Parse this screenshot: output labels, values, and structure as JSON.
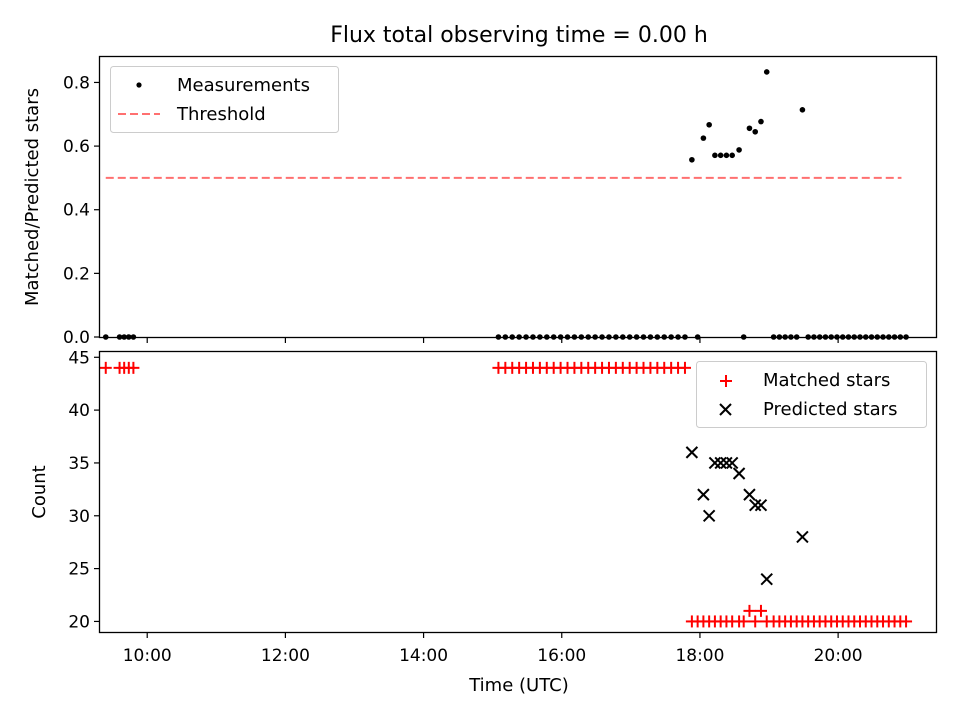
{
  "chart_data": [
    {
      "type": "scatter",
      "title": "Flux total observing time = 0.00 h",
      "xlabel": "",
      "ylabel": "Matched/Predicted stars",
      "xlim": [
        "09:19",
        "21:25"
      ],
      "ylim": [
        0.0,
        0.88
      ],
      "yticks": [
        0.0,
        0.2,
        0.4,
        0.6,
        0.8
      ],
      "ytick_labels": [
        "0.0",
        "0.2",
        "0.4",
        "0.6",
        "0.8"
      ],
      "legend_position": "top-left",
      "legend": [
        "Measurements",
        "Threshold"
      ],
      "threshold": {
        "name": "Threshold",
        "value": 0.5,
        "x_range": [
          "09:24",
          "20:55"
        ],
        "color": "#ff7070"
      },
      "series": [
        {
          "name": "Measurements",
          "marker": "dot",
          "color": "#000000",
          "points": [
            [
              "09:24",
              0.0
            ],
            [
              "09:36",
              0.0
            ],
            [
              "09:40",
              0.0
            ],
            [
              "09:44",
              0.0
            ],
            [
              "09:48",
              0.0
            ],
            [
              "15:05",
              0.0
            ],
            [
              "15:11",
              0.0
            ],
            [
              "15:17",
              0.0
            ],
            [
              "15:23",
              0.0
            ],
            [
              "15:29",
              0.0
            ],
            [
              "15:35",
              0.0
            ],
            [
              "15:41",
              0.0
            ],
            [
              "15:47",
              0.0
            ],
            [
              "15:53",
              0.0
            ],
            [
              "15:59",
              0.0
            ],
            [
              "16:05",
              0.0
            ],
            [
              "16:11",
              0.0
            ],
            [
              "16:17",
              0.0
            ],
            [
              "16:23",
              0.0
            ],
            [
              "16:29",
              0.0
            ],
            [
              "16:35",
              0.0
            ],
            [
              "16:41",
              0.0
            ],
            [
              "16:47",
              0.0
            ],
            [
              "16:53",
              0.0
            ],
            [
              "16:59",
              0.0
            ],
            [
              "17:05",
              0.0
            ],
            [
              "17:11",
              0.0
            ],
            [
              "17:17",
              0.0
            ],
            [
              "17:23",
              0.0
            ],
            [
              "17:29",
              0.0
            ],
            [
              "17:35",
              0.0
            ],
            [
              "17:41",
              0.0
            ],
            [
              "17:47",
              0.0
            ],
            [
              "17:53",
              0.557
            ],
            [
              "17:58",
              0.0
            ],
            [
              "18:03",
              0.625
            ],
            [
              "18:08",
              0.667
            ],
            [
              "18:13",
              0.571
            ],
            [
              "18:18",
              0.571
            ],
            [
              "18:23",
              0.571
            ],
            [
              "18:28",
              0.571
            ],
            [
              "18:34",
              0.588
            ],
            [
              "18:38",
              0.0
            ],
            [
              "18:43",
              0.656
            ],
            [
              "18:48",
              0.645
            ],
            [
              "18:53",
              0.677
            ],
            [
              "18:58",
              0.833
            ],
            [
              "19:04",
              0.0
            ],
            [
              "19:09",
              0.0
            ],
            [
              "19:14",
              0.0
            ],
            [
              "19:19",
              0.0
            ],
            [
              "19:24",
              0.0
            ],
            [
              "19:29",
              0.714
            ],
            [
              "19:34",
              0.0
            ],
            [
              "19:39",
              0.0
            ],
            [
              "19:44",
              0.0
            ],
            [
              "19:49",
              0.0
            ],
            [
              "19:54",
              0.0
            ],
            [
              "19:59",
              0.0
            ],
            [
              "20:04",
              0.0
            ],
            [
              "20:09",
              0.0
            ],
            [
              "20:14",
              0.0
            ],
            [
              "20:19",
              0.0
            ],
            [
              "20:24",
              0.0
            ],
            [
              "20:29",
              0.0
            ],
            [
              "20:34",
              0.0
            ],
            [
              "20:39",
              0.0
            ],
            [
              "20:44",
              0.0
            ],
            [
              "20:49",
              0.0
            ],
            [
              "20:54",
              0.0
            ],
            [
              "20:59",
              0.0
            ]
          ]
        }
      ]
    },
    {
      "type": "scatter",
      "title": "",
      "xlabel": "Time (UTC)",
      "ylabel": "Count",
      "xlim": [
        "09:19",
        "21:25"
      ],
      "ylim": [
        19.0,
        45.5
      ],
      "yticks": [
        20,
        25,
        30,
        35,
        40,
        45
      ],
      "ytick_labels": [
        "20",
        "25",
        "30",
        "35",
        "40",
        "45"
      ],
      "xticks": [
        "10:00",
        "12:00",
        "14:00",
        "16:00",
        "18:00",
        "20:00"
      ],
      "xtick_labels": [
        "10:00",
        "12:00",
        "14:00",
        "16:00",
        "18:00",
        "20:00"
      ],
      "legend_position": "top-right",
      "legend": [
        "Matched stars",
        "Predicted stars"
      ],
      "series": [
        {
          "name": "Matched stars",
          "marker": "plus",
          "color": "#ff0000",
          "points": [
            [
              "09:24",
              44
            ],
            [
              "09:36",
              44
            ],
            [
              "09:40",
              44
            ],
            [
              "09:44",
              44
            ],
            [
              "09:48",
              44
            ],
            [
              "15:05",
              44
            ],
            [
              "15:11",
              44
            ],
            [
              "15:17",
              44
            ],
            [
              "15:23",
              44
            ],
            [
              "15:29",
              44
            ],
            [
              "15:35",
              44
            ],
            [
              "15:41",
              44
            ],
            [
              "15:47",
              44
            ],
            [
              "15:53",
              44
            ],
            [
              "15:59",
              44
            ],
            [
              "16:05",
              44
            ],
            [
              "16:11",
              44
            ],
            [
              "16:17",
              44
            ],
            [
              "16:23",
              44
            ],
            [
              "16:29",
              44
            ],
            [
              "16:35",
              44
            ],
            [
              "16:41",
              44
            ],
            [
              "16:47",
              44
            ],
            [
              "16:53",
              44
            ],
            [
              "16:59",
              44
            ],
            [
              "17:05",
              44
            ],
            [
              "17:11",
              44
            ],
            [
              "17:17",
              44
            ],
            [
              "17:23",
              44
            ],
            [
              "17:29",
              44
            ],
            [
              "17:35",
              44
            ],
            [
              "17:41",
              44
            ],
            [
              "17:47",
              44
            ],
            [
              "17:53",
              20
            ],
            [
              "17:58",
              20
            ],
            [
              "18:03",
              20
            ],
            [
              "18:08",
              20
            ],
            [
              "18:13",
              20
            ],
            [
              "18:18",
              20
            ],
            [
              "18:23",
              20
            ],
            [
              "18:28",
              20
            ],
            [
              "18:34",
              20
            ],
            [
              "18:38",
              20
            ],
            [
              "18:43",
              21
            ],
            [
              "18:48",
              20
            ],
            [
              "18:53",
              21
            ],
            [
              "18:58",
              20
            ],
            [
              "19:04",
              20
            ],
            [
              "19:09",
              20
            ],
            [
              "19:14",
              20
            ],
            [
              "19:19",
              20
            ],
            [
              "19:24",
              20
            ],
            [
              "19:29",
              20
            ],
            [
              "19:34",
              20
            ],
            [
              "19:39",
              20
            ],
            [
              "19:44",
              20
            ],
            [
              "19:49",
              20
            ],
            [
              "19:54",
              20
            ],
            [
              "19:59",
              20
            ],
            [
              "20:04",
              20
            ],
            [
              "20:09",
              20
            ],
            [
              "20:14",
              20
            ],
            [
              "20:19",
              20
            ],
            [
              "20:24",
              20
            ],
            [
              "20:29",
              20
            ],
            [
              "20:34",
              20
            ],
            [
              "20:39",
              20
            ],
            [
              "20:44",
              20
            ],
            [
              "20:49",
              20
            ],
            [
              "20:54",
              20
            ],
            [
              "20:59",
              20
            ]
          ]
        },
        {
          "name": "Predicted stars",
          "marker": "x",
          "color": "#000000",
          "points": [
            [
              "17:53",
              36
            ],
            [
              "18:03",
              32
            ],
            [
              "18:08",
              30
            ],
            [
              "18:13",
              35
            ],
            [
              "18:18",
              35
            ],
            [
              "18:23",
              35
            ],
            [
              "18:28",
              35
            ],
            [
              "18:34",
              34
            ],
            [
              "18:43",
              32
            ],
            [
              "18:48",
              31
            ],
            [
              "18:53",
              31
            ],
            [
              "18:58",
              24
            ],
            [
              "19:29",
              28
            ]
          ]
        }
      ]
    }
  ]
}
